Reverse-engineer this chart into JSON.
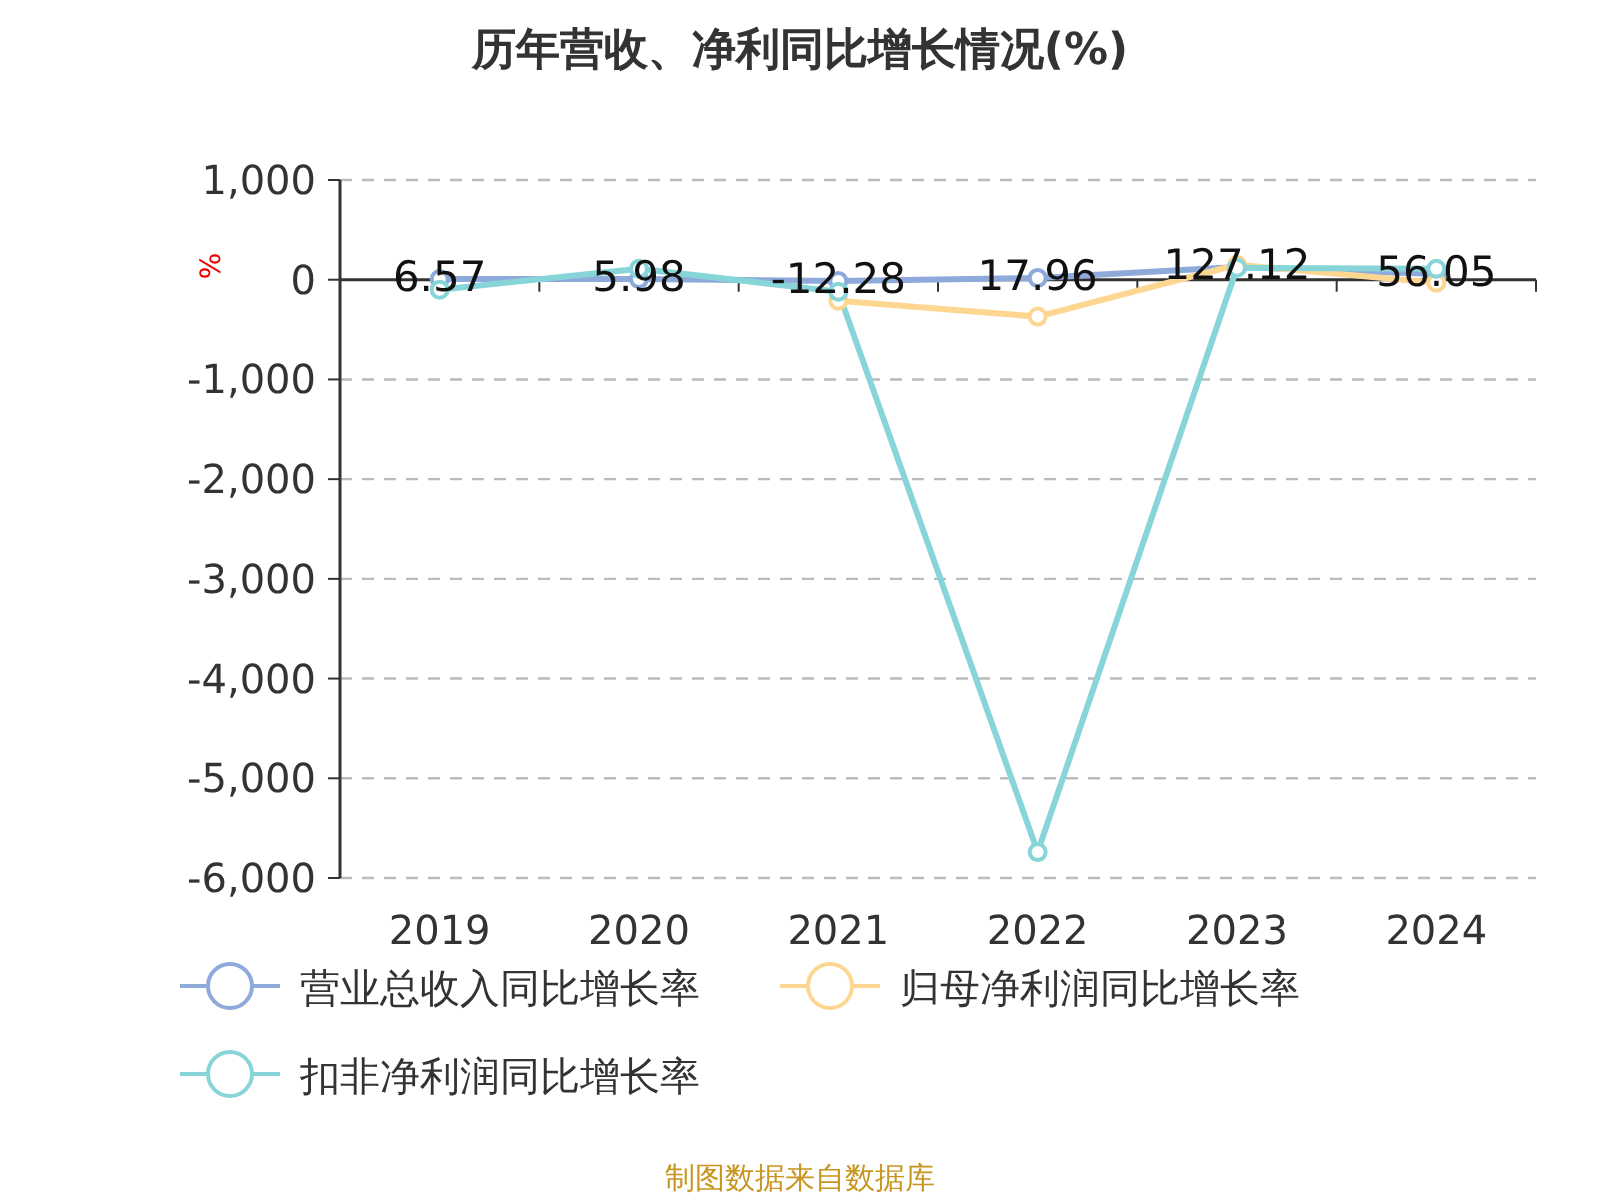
{
  "chart_data": {
    "type": "line",
    "title": "历年营收、净利同比增长情况(%)",
    "ylabel": "%",
    "categories": [
      "2019",
      "2020",
      "2021",
      "2022",
      "2023",
      "2024"
    ],
    "series": [
      {
        "name": "营业总收入同比增长率",
        "color": "#8eaadb",
        "values": [
          6.57,
          5.98,
          -12.28,
          17.96,
          127.12,
          56.05
        ],
        "value_labels": [
          "6.57",
          "5.98",
          "-12.28",
          "17.96",
          "127.12",
          "56.05"
        ]
      },
      {
        "name": "归母净利润同比增长率",
        "color": "#fdd692",
        "values": [
          null,
          null,
          -210,
          -370,
          150,
          -30
        ]
      },
      {
        "name": "扣非净利润同比增长率",
        "color": "#88d5d9",
        "values": [
          -100,
          110,
          -120,
          -5740,
          120,
          110
        ]
      }
    ],
    "ylim": [
      -6000,
      1000
    ],
    "yticks": [
      {
        "value": 1000,
        "label": "1,000"
      },
      0,
      {
        "value": -1000,
        "label": "-1,000"
      },
      {
        "value": -2000,
        "label": "-2,000"
      },
      {
        "value": -3000,
        "label": "-3,000"
      },
      {
        "value": -4000,
        "label": "-4,000"
      },
      {
        "value": -5000,
        "label": "-5,000"
      },
      {
        "value": -6000,
        "label": "-6,000"
      }
    ],
    "grid": "y",
    "legend": "bottom",
    "marker": "circle",
    "line_style": "solid",
    "annotations": [
      "制图数据来自数据库"
    ]
  }
}
